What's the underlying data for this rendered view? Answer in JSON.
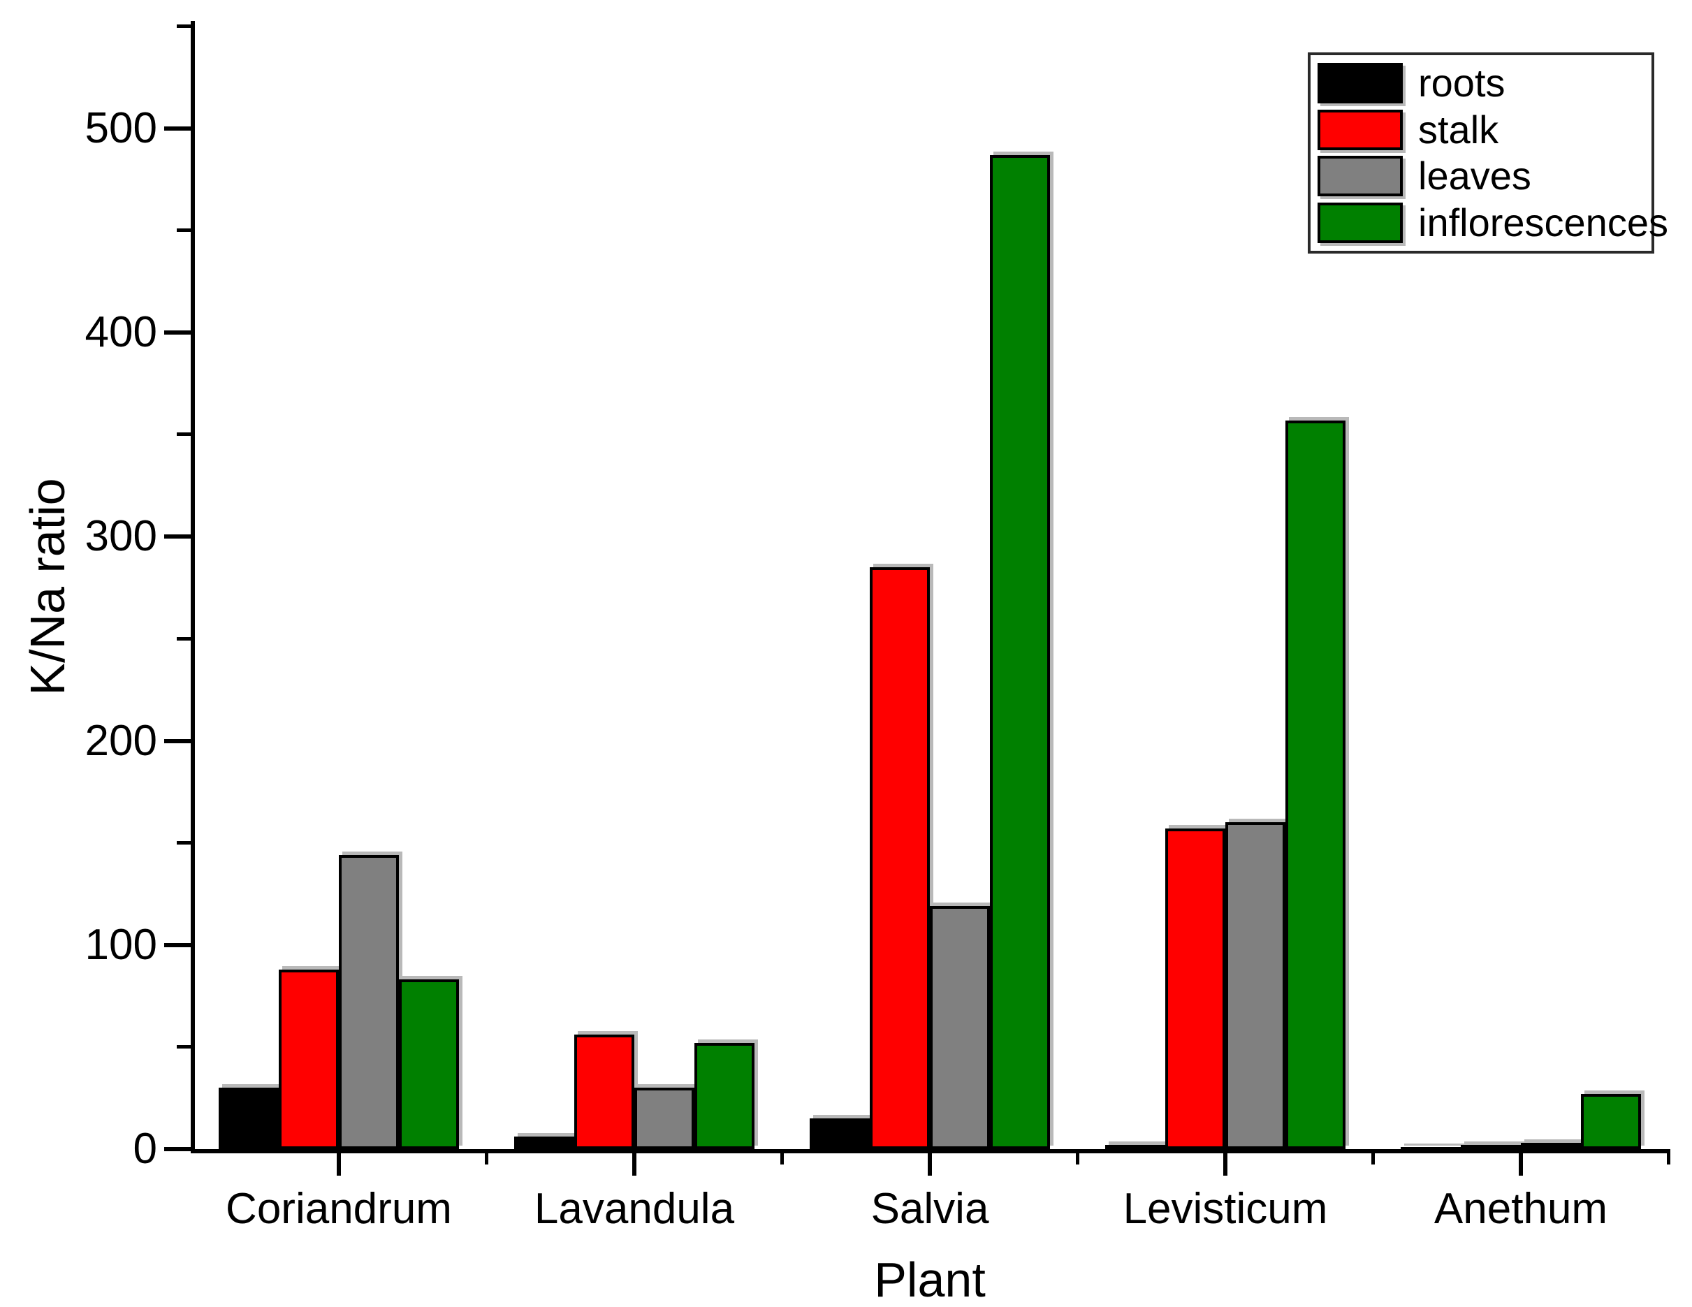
{
  "chart_data": {
    "type": "bar",
    "title": "",
    "xlabel": "Plant",
    "ylabel": "K/Na ratio",
    "categories": [
      "Coriandrum",
      "Lavandula",
      "Salvia",
      "Levisticum",
      "Anethum"
    ],
    "series": [
      {
        "name": "roots",
        "color": "#000000",
        "values": [
          30,
          6,
          15,
          2,
          1
        ]
      },
      {
        "name": "stalk",
        "color": "#ff0000",
        "values": [
          88,
          56,
          285,
          157,
          2
        ]
      },
      {
        "name": "leaves",
        "color": "#808080",
        "values": [
          144,
          30,
          119,
          160,
          3
        ]
      },
      {
        "name": "inflorescences",
        "color": "#008000",
        "values": [
          83,
          52,
          487,
          357,
          27
        ]
      }
    ],
    "ylim": [
      0,
      550
    ],
    "yticks": [
      0,
      100,
      200,
      300,
      400,
      500
    ],
    "y_minor_ticks": [
      50,
      150,
      250,
      350,
      450,
      550
    ],
    "grid": false,
    "legend_position": "top-right"
  }
}
